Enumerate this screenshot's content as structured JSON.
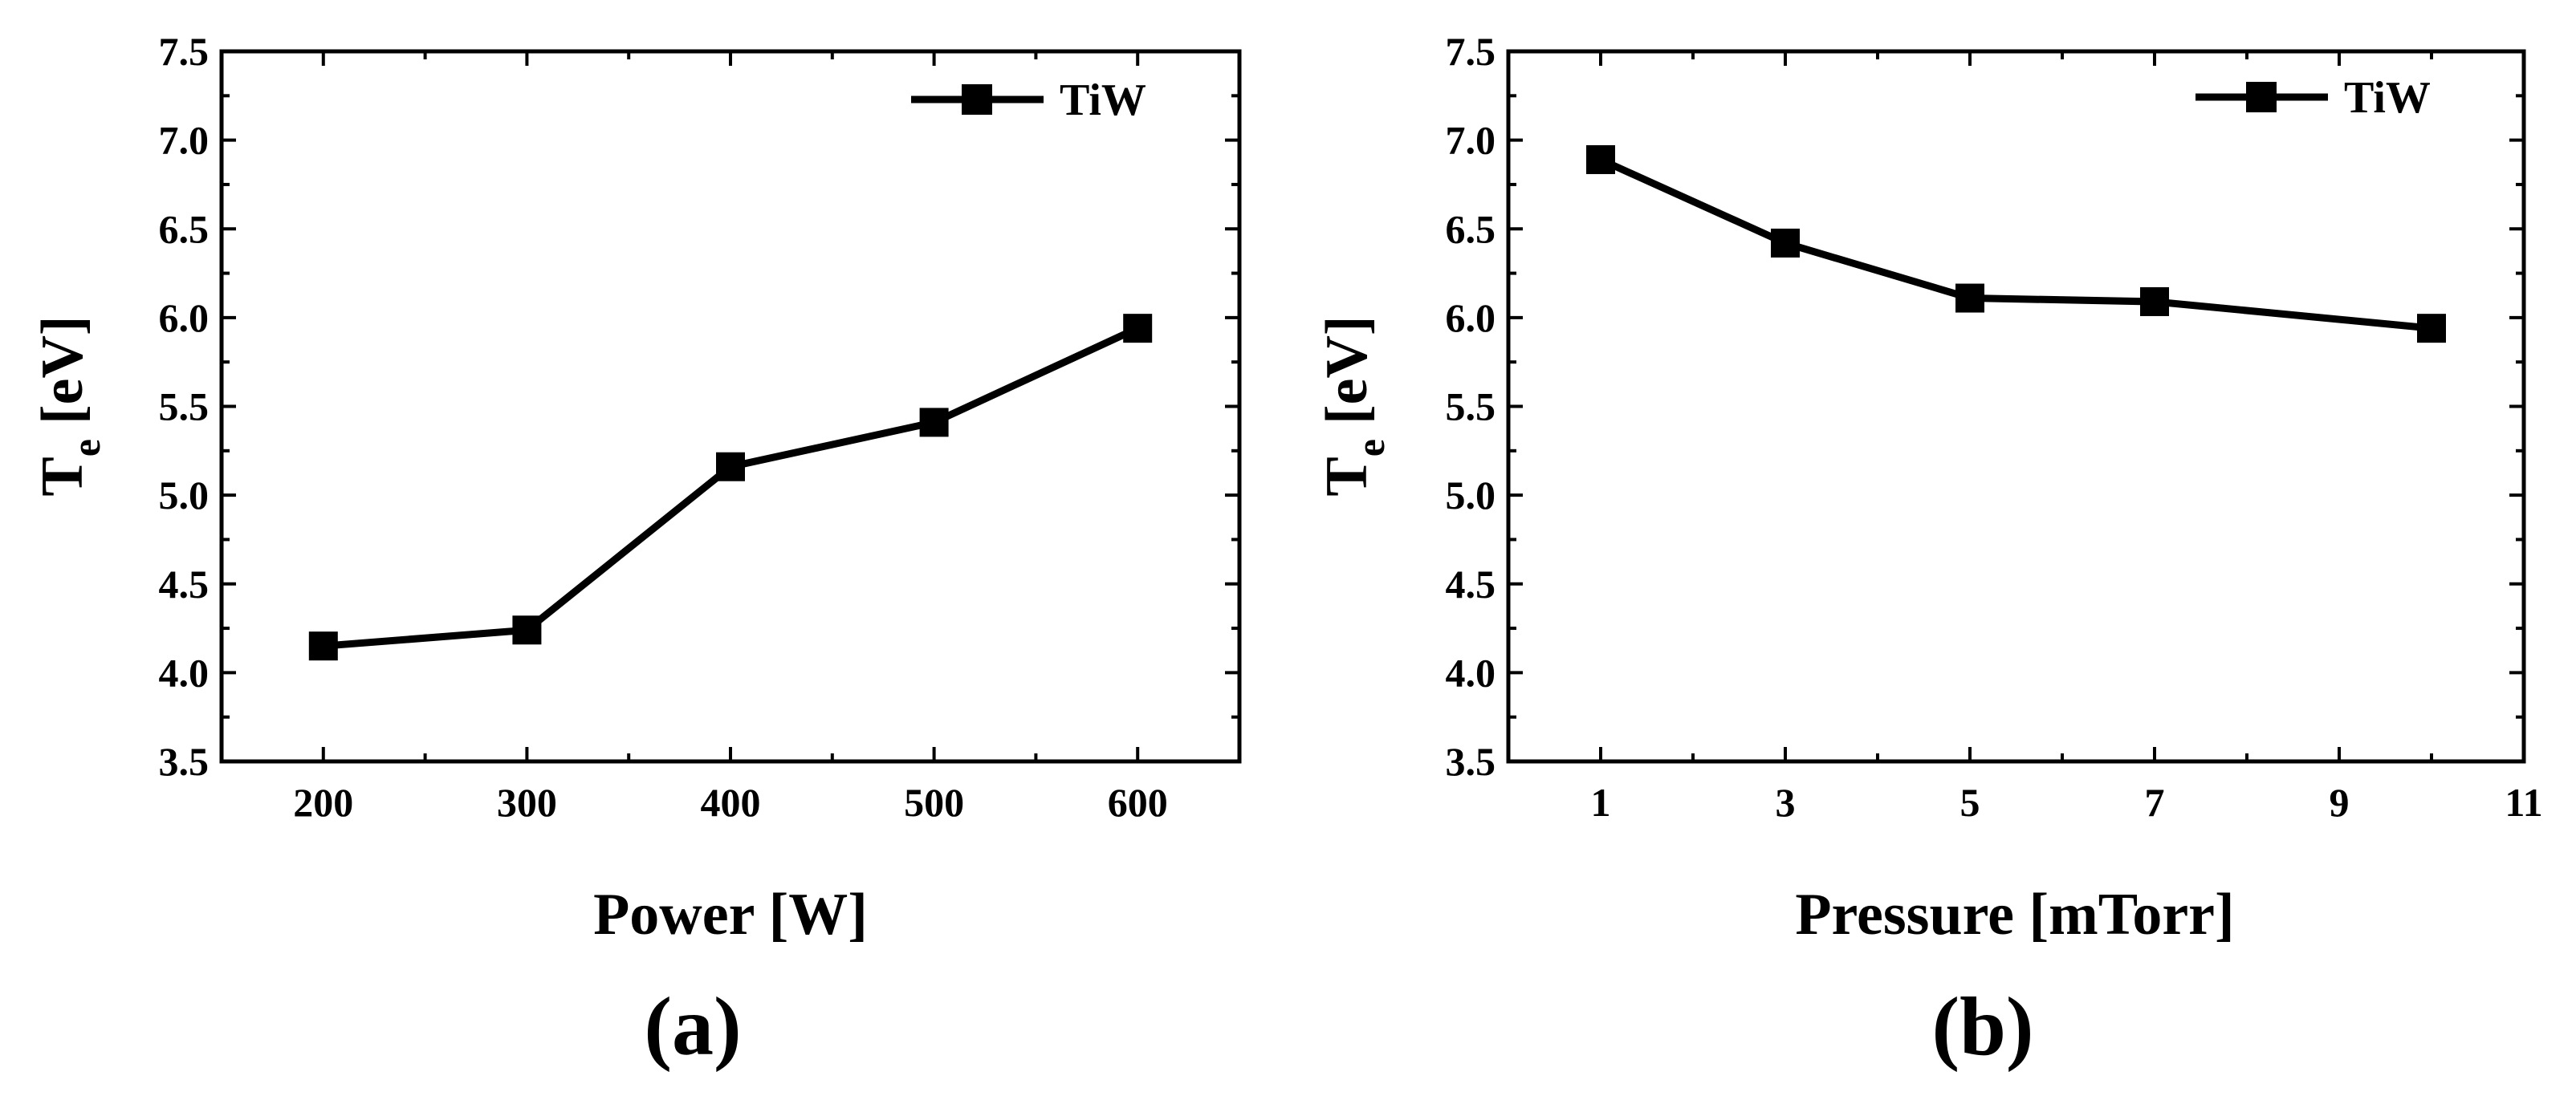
{
  "chart_data": [
    {
      "type": "line",
      "panel_label": "(a)",
      "xlabel": "Power [W]",
      "ylabel": {
        "main": "T",
        "sub": "e",
        "unit": "[eV]"
      },
      "xlim": [
        150,
        650
      ],
      "ylim": [
        3.5,
        7.5
      ],
      "xticks": [
        200,
        300,
        400,
        500,
        600
      ],
      "xtick_labels": [
        "200",
        "300",
        "400",
        "500",
        "600"
      ],
      "yticks": [
        3.5,
        4.0,
        4.5,
        5.0,
        5.5,
        6.0,
        6.5,
        7.0,
        7.5
      ],
      "ytick_labels": [
        "3.5",
        "4.0",
        "4.5",
        "5.0",
        "5.5",
        "6.0",
        "6.5",
        "7.0",
        "7.5"
      ],
      "legend_position": "top-right",
      "series": [
        {
          "name": "TiW",
          "marker": "square",
          "color": "#000000",
          "x": [
            200,
            300,
            400,
            500,
            600
          ],
          "y": [
            4.15,
            4.24,
            5.16,
            5.41,
            5.94
          ]
        }
      ]
    },
    {
      "type": "line",
      "panel_label": "(b)",
      "xlabel": "Pressure [mTorr]",
      "ylabel": {
        "main": "T",
        "sub": "e",
        "unit": "[eV]"
      },
      "xlim": [
        0,
        11
      ],
      "ylim": [
        3.5,
        7.5
      ],
      "xticks": [
        1,
        3,
        5,
        7,
        9,
        11
      ],
      "xtick_labels": [
        "1",
        "3",
        "5",
        "7",
        "9",
        "11"
      ],
      "yticks": [
        3.5,
        4.0,
        4.5,
        5.0,
        5.5,
        6.0,
        6.5,
        7.0,
        7.5
      ],
      "ytick_labels": [
        "3.5",
        "4.0",
        "4.5",
        "5.0",
        "5.5",
        "6.0",
        "6.5",
        "7.0",
        "7.5"
      ],
      "legend_position": "top-right",
      "series": [
        {
          "name": "TiW",
          "marker": "square",
          "color": "#000000",
          "x": [
            1,
            3,
            5,
            7,
            10
          ],
          "y": [
            6.89,
            6.42,
            6.11,
            6.09,
            5.94
          ]
        }
      ]
    }
  ]
}
